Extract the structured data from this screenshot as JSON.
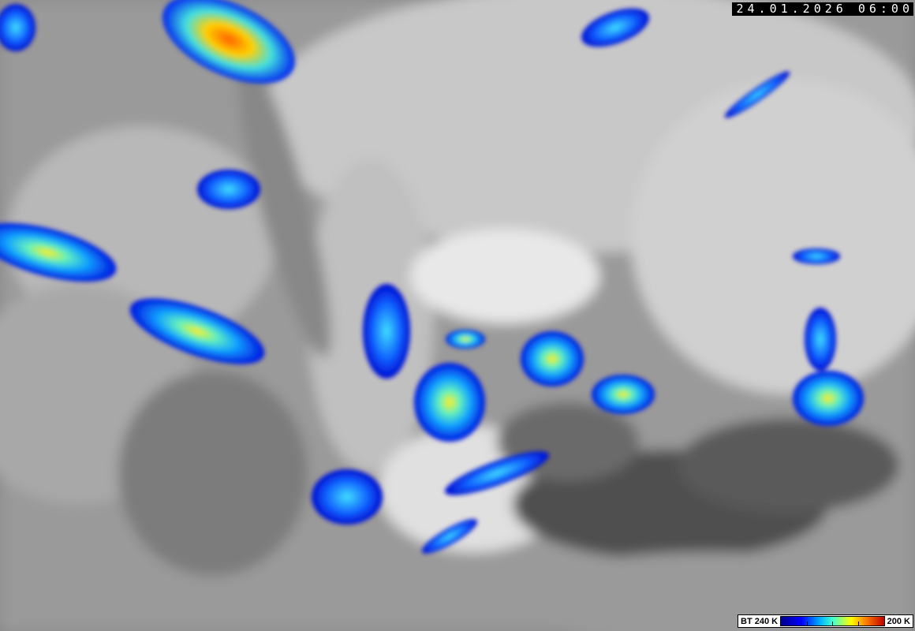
{
  "image": {
    "type": "satellite infrared brightness temperature",
    "timestamp": "24.01.2026 06:00"
  },
  "legend": {
    "label_left": "BT 240 K",
    "label_right": "200 K",
    "colors": [
      "#00008c",
      "#0000ff",
      "#00b0ff",
      "#40ffd0",
      "#ffff00",
      "#ff8000",
      "#c00000"
    ]
  }
}
